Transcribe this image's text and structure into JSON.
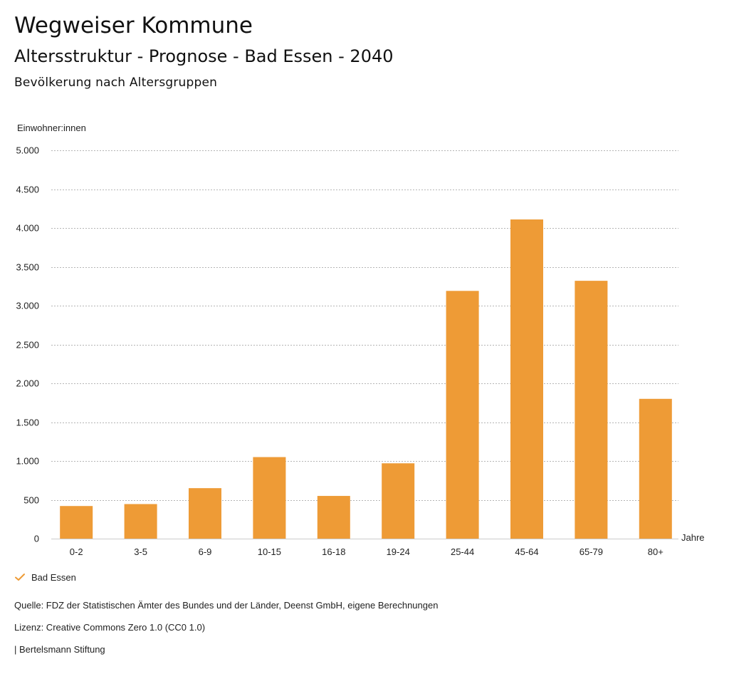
{
  "header": {
    "title": "Wegweiser Kommune",
    "subtitle": "Altersstruktur - Prognose - Bad Essen - 2040",
    "section": "Bevölkerung nach Altersgruppen"
  },
  "chart_data": {
    "type": "bar",
    "ylabel": "Einwohner:innen",
    "xlabel": "Jahre",
    "categories": [
      "0-2",
      "3-5",
      "6-9",
      "10-15",
      "16-18",
      "19-24",
      "25-44",
      "45-64",
      "65-79",
      "80+"
    ],
    "series": [
      {
        "name": "Bad Essen",
        "color": "#ee9b36",
        "values": [
          420,
          445,
          650,
          1050,
          550,
          970,
          3190,
          4110,
          3320,
          1800
        ]
      }
    ],
    "ylim": [
      0,
      5000
    ],
    "yticks": [
      0,
      500,
      1000,
      1500,
      2000,
      2500,
      3000,
      3500,
      4000,
      4500,
      5000
    ],
    "ytick_labels": [
      "0",
      "500",
      "1.000",
      "1.500",
      "2.000",
      "2.500",
      "3.000",
      "3.500",
      "4.000",
      "4.500",
      "5.000"
    ],
    "grid": true,
    "legend_position": "bottom-left"
  },
  "legend": {
    "label": "Bad Essen",
    "icon": "check-icon"
  },
  "footer": {
    "source": "Quelle: FDZ der Statistischen Ämter des Bundes und der Länder, Deenst GmbH, eigene Berechnungen",
    "license": "Lizenz: Creative Commons Zero 1.0 (CC0 1.0)",
    "publisher": "| Bertelsmann Stiftung"
  }
}
